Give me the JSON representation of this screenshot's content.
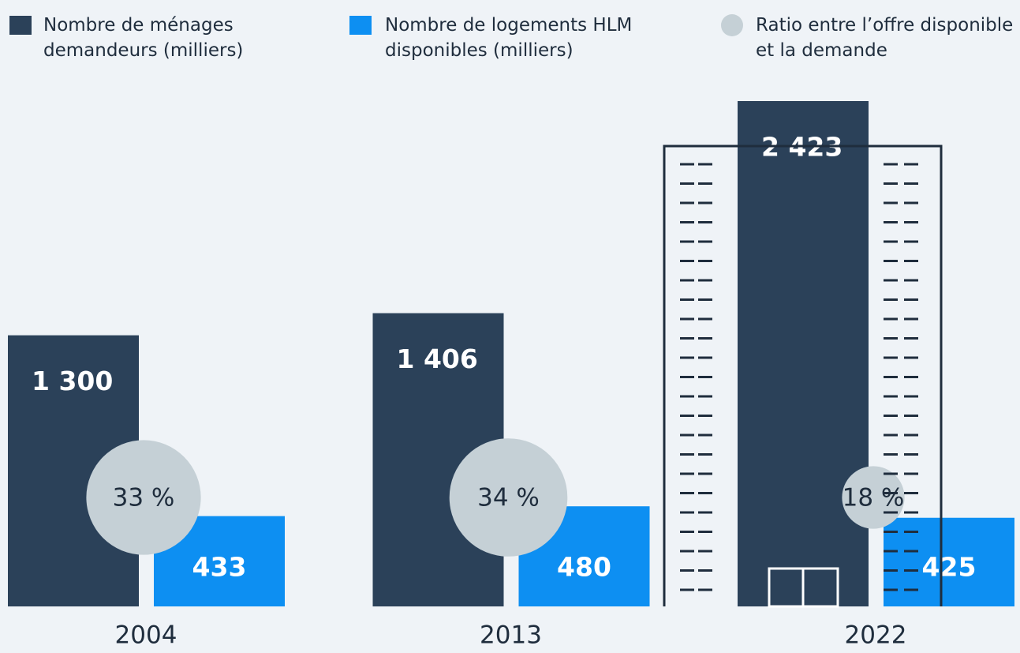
{
  "chart_data": {
    "type": "bar",
    "categories": [
      "2004",
      "2013",
      "2022"
    ],
    "series": [
      {
        "name": "Nombre de ménages demandeurs (milliers)",
        "color": "#2b4159",
        "values": [
          1300,
          1406,
          2423
        ],
        "value_labels": [
          "1 300",
          "1 406",
          "2 423"
        ]
      },
      {
        "name": "Nombre de logements HLM disponibles (milliers)",
        "color": "#0d8ff2",
        "values": [
          433,
          480,
          425
        ]
      },
      {
        "name": "Ratio entre l’offre disponible et la demande",
        "color": "#c5d0d6",
        "values": [
          33,
          34,
          18
        ],
        "value_labels": [
          "33 %",
          "34 %",
          "18 %"
        ]
      }
    ]
  }
}
